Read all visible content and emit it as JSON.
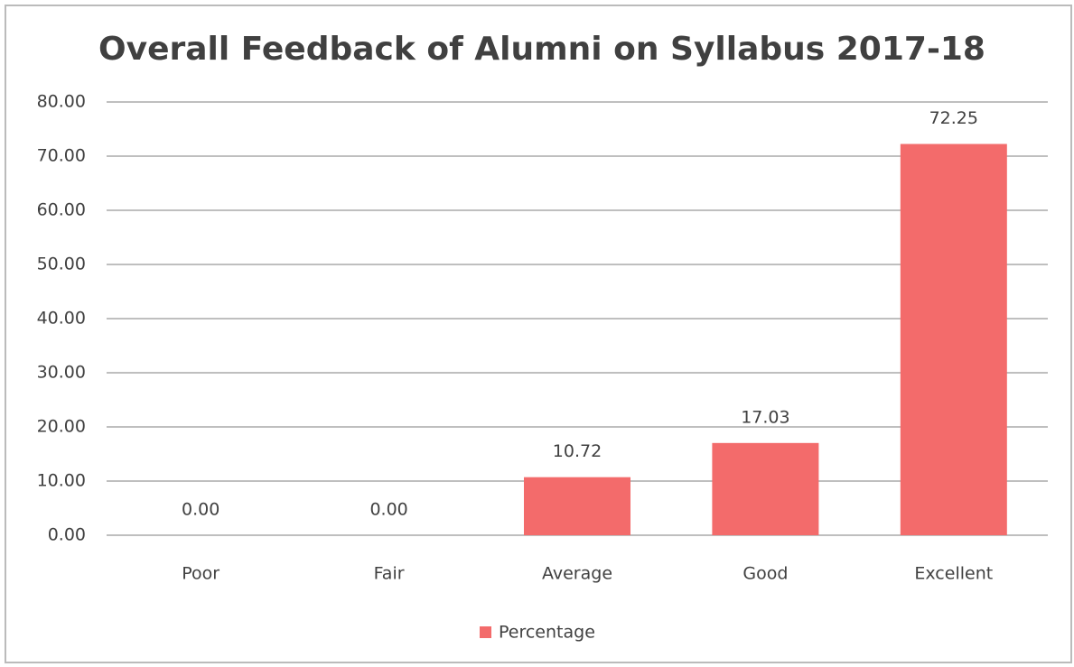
{
  "chart_data": {
    "type": "bar",
    "title": "Overall Feedback of Alumni on Syllabus 2017-18",
    "categories": [
      "Poor",
      "Fair",
      "Average",
      "Good",
      "Excellent"
    ],
    "series": [
      {
        "name": "Percentage",
        "color": "#f36b6b",
        "values": [
          0,
          0,
          10.72,
          17.03,
          72.25
        ],
        "value_labels": [
          "0.00",
          "0.00",
          "10.72",
          "17.03",
          "72.25"
        ]
      }
    ],
    "ylim": [
      0,
      80
    ],
    "yticks": [
      {
        "value": 0,
        "label": "0.00"
      },
      {
        "value": 10,
        "label": "10.00"
      },
      {
        "value": 20,
        "label": "20.00"
      },
      {
        "value": 30,
        "label": "30.00"
      },
      {
        "value": 40,
        "label": "40.00"
      },
      {
        "value": 50,
        "label": "50.00"
      },
      {
        "value": 60,
        "label": "60.00"
      },
      {
        "value": 70,
        "label": "70.00"
      },
      {
        "value": 80,
        "label": "80.00"
      }
    ],
    "grid": true,
    "legend": "bottom"
  }
}
